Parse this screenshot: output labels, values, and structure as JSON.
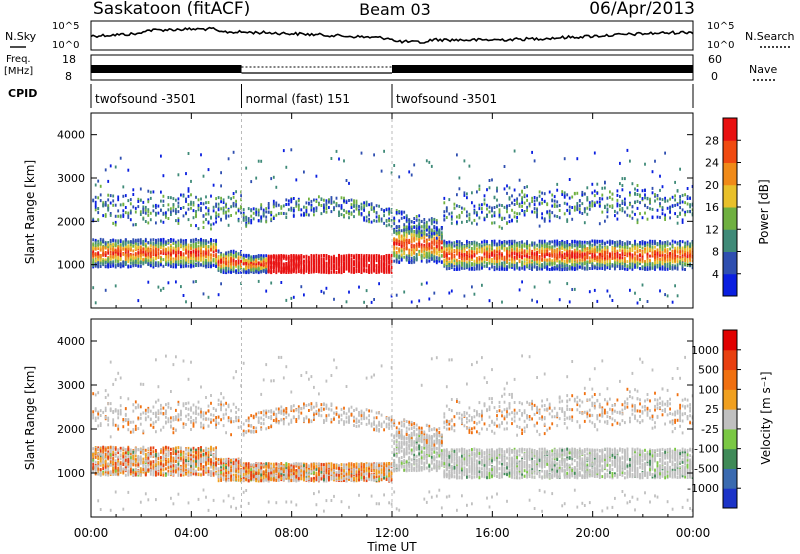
{
  "header": {
    "station": "Saskatoon (fitACF)",
    "beam": "Beam 03",
    "date": "06/Apr/2013"
  },
  "strip_labels": {
    "nsky": "N.Sky",
    "nsky_top": "10^5",
    "nsky_bottom": "10^0",
    "nsearch": "N.Search",
    "nsearch_top": "10^5",
    "nsearch_bottom": "10^0",
    "freq_line1": "Freq.",
    "freq_line2": "[MHz]",
    "freq_top": "18",
    "freq_bottom": "8",
    "nave": "Nave",
    "nave_top": "60",
    "nave_bottom": "0",
    "cpid": "CPID"
  },
  "cpid_segments": [
    {
      "label": "twofsound -3501",
      "start_h": 0,
      "end_h": 6
    },
    {
      "label": "normal (fast) 151",
      "start_h": 6,
      "end_h": 12
    },
    {
      "label": "twofsound -3501",
      "start_h": 12,
      "end_h": 24
    }
  ],
  "x_axis": {
    "label": "Time UT",
    "ticks": [
      "00:00",
      "04:00",
      "08:00",
      "12:00",
      "16:00",
      "20:00",
      "00:00"
    ]
  },
  "chart_data": [
    {
      "type": "heatmap",
      "name": "power",
      "ylabel": "Slant Range [km]",
      "y_ticks": [
        "1000",
        "2000",
        "3000",
        "4000"
      ],
      "ylim": [
        0,
        4500
      ],
      "xlim_hours": [
        0,
        24
      ],
      "colorbar_label": "Power [dB]",
      "colorbar_ticks": [
        "4",
        "8",
        "12",
        "16",
        "20",
        "24",
        "28"
      ],
      "colorbar_colors": [
        "#0a1fe0",
        "#2f4fb0",
        "#3f8a78",
        "#6fb040",
        "#e8c02a",
        "#f08a18",
        "#f04a10",
        "#e81010"
      ]
    },
    {
      "type": "heatmap",
      "name": "velocity",
      "ylabel": "Slant Range [km]",
      "y_ticks": [
        "1000",
        "2000",
        "3000",
        "4000"
      ],
      "ylim": [
        0,
        4500
      ],
      "xlim_hours": [
        0,
        24
      ],
      "colorbar_label": "Velocity [m s⁻¹]",
      "colorbar_ticks": [
        "1000",
        "500",
        "100",
        "25",
        "-25",
        "-100",
        "-500",
        "-1000"
      ],
      "colorbar_colors": [
        "#1c34c8",
        "#3a6ab0",
        "#3f8a58",
        "#7ac843",
        "#c0c0c0",
        "#f0a020",
        "#f07010",
        "#e84010",
        "#e00000"
      ]
    }
  ]
}
